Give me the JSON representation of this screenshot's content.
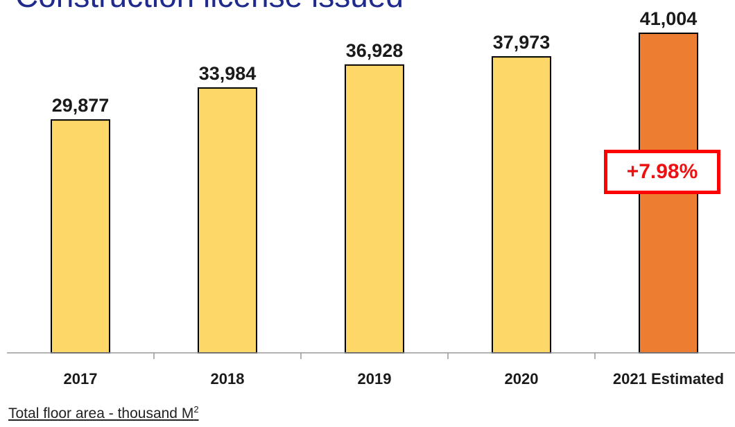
{
  "chart_data": {
    "type": "bar",
    "title": "Construction license issued",
    "categories": [
      "2017",
      "2018",
      "2019",
      "2020",
      "2021 Estimated"
    ],
    "values": [
      29877,
      33984,
      36928,
      37973,
      41004
    ],
    "value_labels": [
      "29,877",
      "33,984",
      "36,928",
      "37,973",
      "41,004"
    ],
    "annotation": "+7.98%",
    "unit_note": "Total floor area - thousand M",
    "unit_superscript": "2",
    "ylim": [
      0,
      41004
    ],
    "grid": false,
    "legend": "none"
  },
  "colors": {
    "bar": "#fdd869",
    "bar_highlight": "#ed7d31",
    "title": "#1f2a8c",
    "annotation": "#ff0000"
  }
}
